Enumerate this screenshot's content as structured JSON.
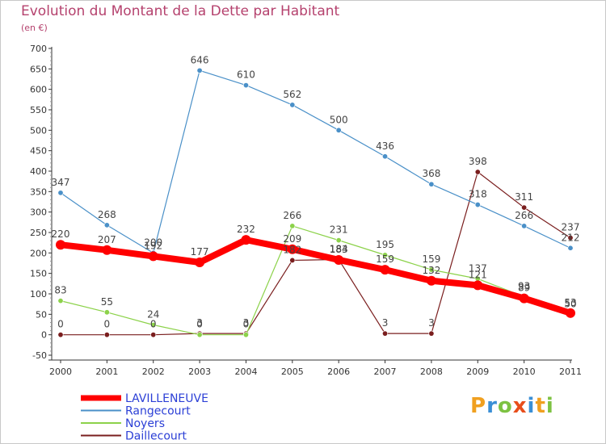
{
  "header": {
    "title": "Evolution du Montant de la Dette par Habitant",
    "unit": "(en €)"
  },
  "logo": {
    "letters": [
      "P",
      "r",
      "o",
      "x",
      "i",
      "t",
      "i"
    ],
    "colors": [
      "#f0a020",
      "#3a8fd6",
      "#7dc242",
      "#e84e1b",
      "#3a8fd6",
      "#f0a020",
      "#7dc242"
    ]
  },
  "chart_data": {
    "type": "line",
    "title": "Evolution du Montant de la Dette par Habitant",
    "ylabel": "(en €)",
    "xlabel": "",
    "x": [
      "2000",
      "2001",
      "2002",
      "2003",
      "2004",
      "2005",
      "2006",
      "2007",
      "2008",
      "2009",
      "2010",
      "2011"
    ],
    "ylim": [
      -50,
      700
    ],
    "yticks": [
      -50,
      0,
      50,
      100,
      150,
      200,
      250,
      300,
      350,
      400,
      450,
      500,
      550,
      600,
      650,
      700
    ],
    "grid": false,
    "legend_position": "bottom-left",
    "series": [
      {
        "name": "LAVILLENEUVE",
        "color": "#ff0000",
        "values": [
          220,
          207,
          192,
          177,
          232,
          209,
          183,
          159,
          132,
          121,
          89,
          53
        ]
      },
      {
        "name": "Rangecourt",
        "color": "#4a90c8",
        "values": [
          347,
          268,
          200,
          646,
          610,
          562,
          500,
          436,
          368,
          318,
          266,
          212
        ]
      },
      {
        "name": "Noyers",
        "color": "#8cd24a",
        "values": [
          83,
          55,
          24,
          0,
          0,
          266,
          231,
          195,
          159,
          137,
          93,
          50
        ]
      },
      {
        "name": "Daillecourt",
        "color": "#7a1e1e",
        "values": [
          0,
          0,
          0,
          3,
          3,
          182,
          184,
          3,
          3,
          398,
          311,
          237
        ]
      }
    ],
    "labels": {
      "LAVILLENEUVE": [
        "220",
        "207",
        "192",
        "177",
        "232",
        "209",
        "183",
        "159",
        "132",
        "121",
        "89",
        "53"
      ],
      "Rangecourt": [
        "347",
        "268",
        "200",
        "646",
        "610",
        "562",
        "500",
        "436",
        "368",
        "318",
        "266",
        "212"
      ],
      "Noyers": [
        "83",
        "55",
        "24",
        "0",
        "0",
        "266",
        "231",
        "195",
        "159",
        "137",
        "93",
        "50"
      ],
      "Daillecourt": [
        "0",
        "0",
        "0",
        "3",
        "3",
        "182",
        "184",
        "3",
        "3",
        "398",
        "311",
        "237"
      ]
    }
  }
}
